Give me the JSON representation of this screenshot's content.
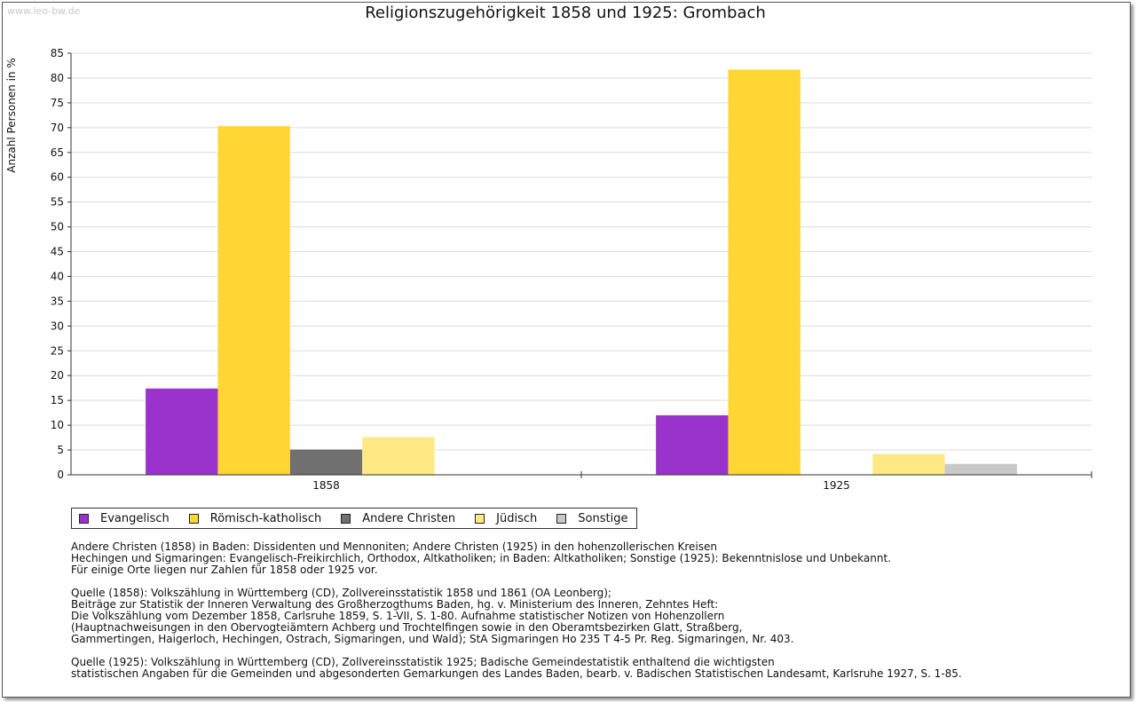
{
  "watermark": "www.leo-bw.de",
  "chart_data": {
    "type": "bar",
    "title": "Religionszugehörigkeit 1858 und 1925: Grombach",
    "ylabel": "Anzahl Personen in %",
    "xlabel": "",
    "categories": [
      "1858",
      "1925"
    ],
    "ylim": [
      0,
      85
    ],
    "yticks": [
      0,
      5,
      10,
      15,
      20,
      25,
      30,
      35,
      40,
      45,
      50,
      55,
      60,
      65,
      70,
      75,
      80,
      85
    ],
    "grid": true,
    "legend_position": "bottom",
    "series": [
      {
        "name": "Evangelisch",
        "color": "#9933cc",
        "values": [
          17.4,
          12.0
        ]
      },
      {
        "name": "Römisch-katholisch",
        "color": "#ffd633",
        "values": [
          70.3,
          81.7
        ]
      },
      {
        "name": "Andere Christen",
        "color": "#707070",
        "values": [
          5.1,
          0
        ]
      },
      {
        "name": "Jüdisch",
        "color": "#ffe985",
        "values": [
          7.6,
          4.2
        ]
      },
      {
        "name": "Sonstige",
        "color": "#c8c8c8",
        "values": [
          0,
          2.2
        ]
      }
    ]
  },
  "notes": [
    [
      "Andere Christen (1858) in Baden: Dissidenten und Mennoniten; Andere Christen (1925) in den hohenzollerischen Kreisen",
      "Hechingen und Sigmaringen: Evangelisch-Freikirchlich, Orthodox, Altkatholiken; in Baden: Altkatholiken; Sonstige (1925): Bekenntnislose und Unbekannt.",
      "Für einige Orte liegen nur Zahlen für 1858 oder 1925 vor."
    ],
    [
      "Quelle (1858): Volkszählung in Württemberg (CD), Zollvereinsstatistik 1858 und 1861 (OA Leonberg);",
      "Beiträge zur Statistik der Inneren Verwaltung des Großherzogthums Baden, hg. v. Ministerium des Inneren, Zehntes Heft:",
      "Die Volkszählung vom Dezember 1858, Carlsruhe 1859, S. 1-VII, S. 1-80. Aufnahme statistischer Notizen von Hohenzollern",
      "(Hauptnachweisungen in den Obervogteiämtern Achberg und Trochtelfingen sowie in den Oberamtsbezirken Glatt, Straßberg,",
      "Gammertingen, Haigerloch, Hechingen, Ostrach, Sigmaringen, und Wald); StA Sigmaringen Ho 235 T 4-5 Pr. Reg. Sigmaringen, Nr. 403."
    ],
    [
      "Quelle (1925): Volkszählung in Württemberg (CD), Zollvereinsstatistik 1925; Badische Gemeindestatistik enthaltend die wichtigsten",
      "statistischen Angaben für die Gemeinden und abgesonderten Gemarkungen des Landes Baden, bearb. v. Badischen Statistischen Landesamt, Karlsruhe 1927, S. 1-85."
    ]
  ]
}
